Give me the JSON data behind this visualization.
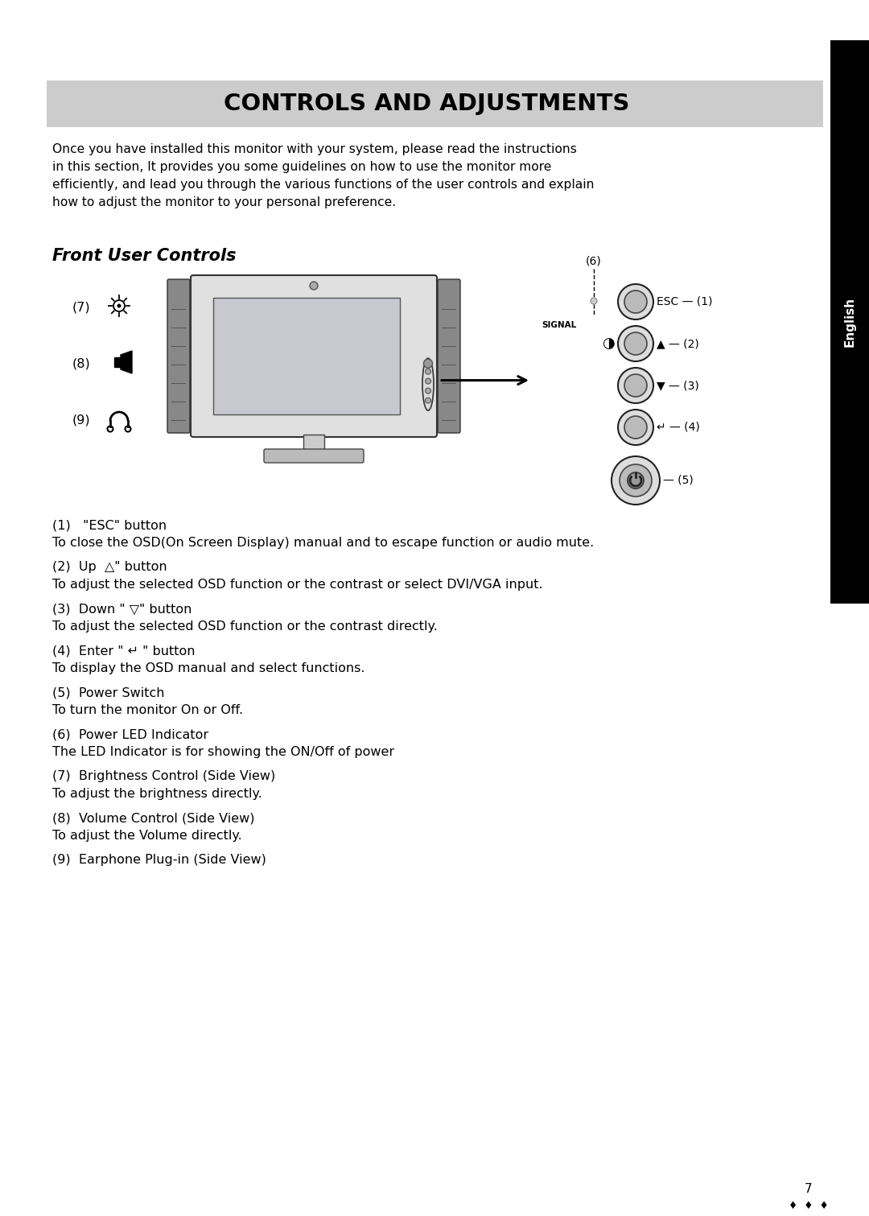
{
  "page_bg": "#ffffff",
  "header_bg": "#cccccc",
  "header_text": "CONTROLS AND ADJUSTMENTS",
  "header_text_color": "#000000",
  "sidebar_bg": "#000000",
  "sidebar_text": "English",
  "sidebar_text_color": "#ffffff",
  "intro_line1": "Once you have installed this monitor with your system, please read the instructions",
  "intro_line2": "in this section, It provides you some guidelines on how to use the monitor more",
  "intro_line3": "efficiently, and lead you through the various functions of the user controls and explain",
  "intro_line4": "how to adjust the monitor to your personal preference.",
  "section_title": "Front User Controls",
  "desc_1_title": "(1)   \"ESC\" button",
  "desc_1_body": "To close the OSD(On Screen Display) manual and to escape function or audio mute.",
  "desc_2_title": "(2)  Up  △\" button",
  "desc_2_body": "To adjust the selected OSD function or the contrast or select DVI/VGA input.",
  "desc_3_title": "(3)  Down \" ▽\" button",
  "desc_3_body": "To adjust the selected OSD function or the contrast directly.",
  "desc_4_title": "(4)  Enter \" ↵ \" button",
  "desc_4_body": "To display the OSD manual and select functions.",
  "desc_5_title": "(5)  Power Switch",
  "desc_5_body": "To turn the monitor On or Off.",
  "desc_6_title": "(6)  Power LED Indicator",
  "desc_6_body": "The LED Indicator is for showing the ON/Off of power",
  "desc_7_title": "(7)  Brightness Control (Side View)",
  "desc_7_body": "To adjust the brightness directly.",
  "desc_8_title": "(8)  Volume Control (Side View)",
  "desc_8_body": "To adjust the Volume directly.",
  "desc_9_title": "(9)  Earphone Plug-in (Side View)",
  "desc_9_body": "",
  "page_number": "7",
  "dot": "♦"
}
